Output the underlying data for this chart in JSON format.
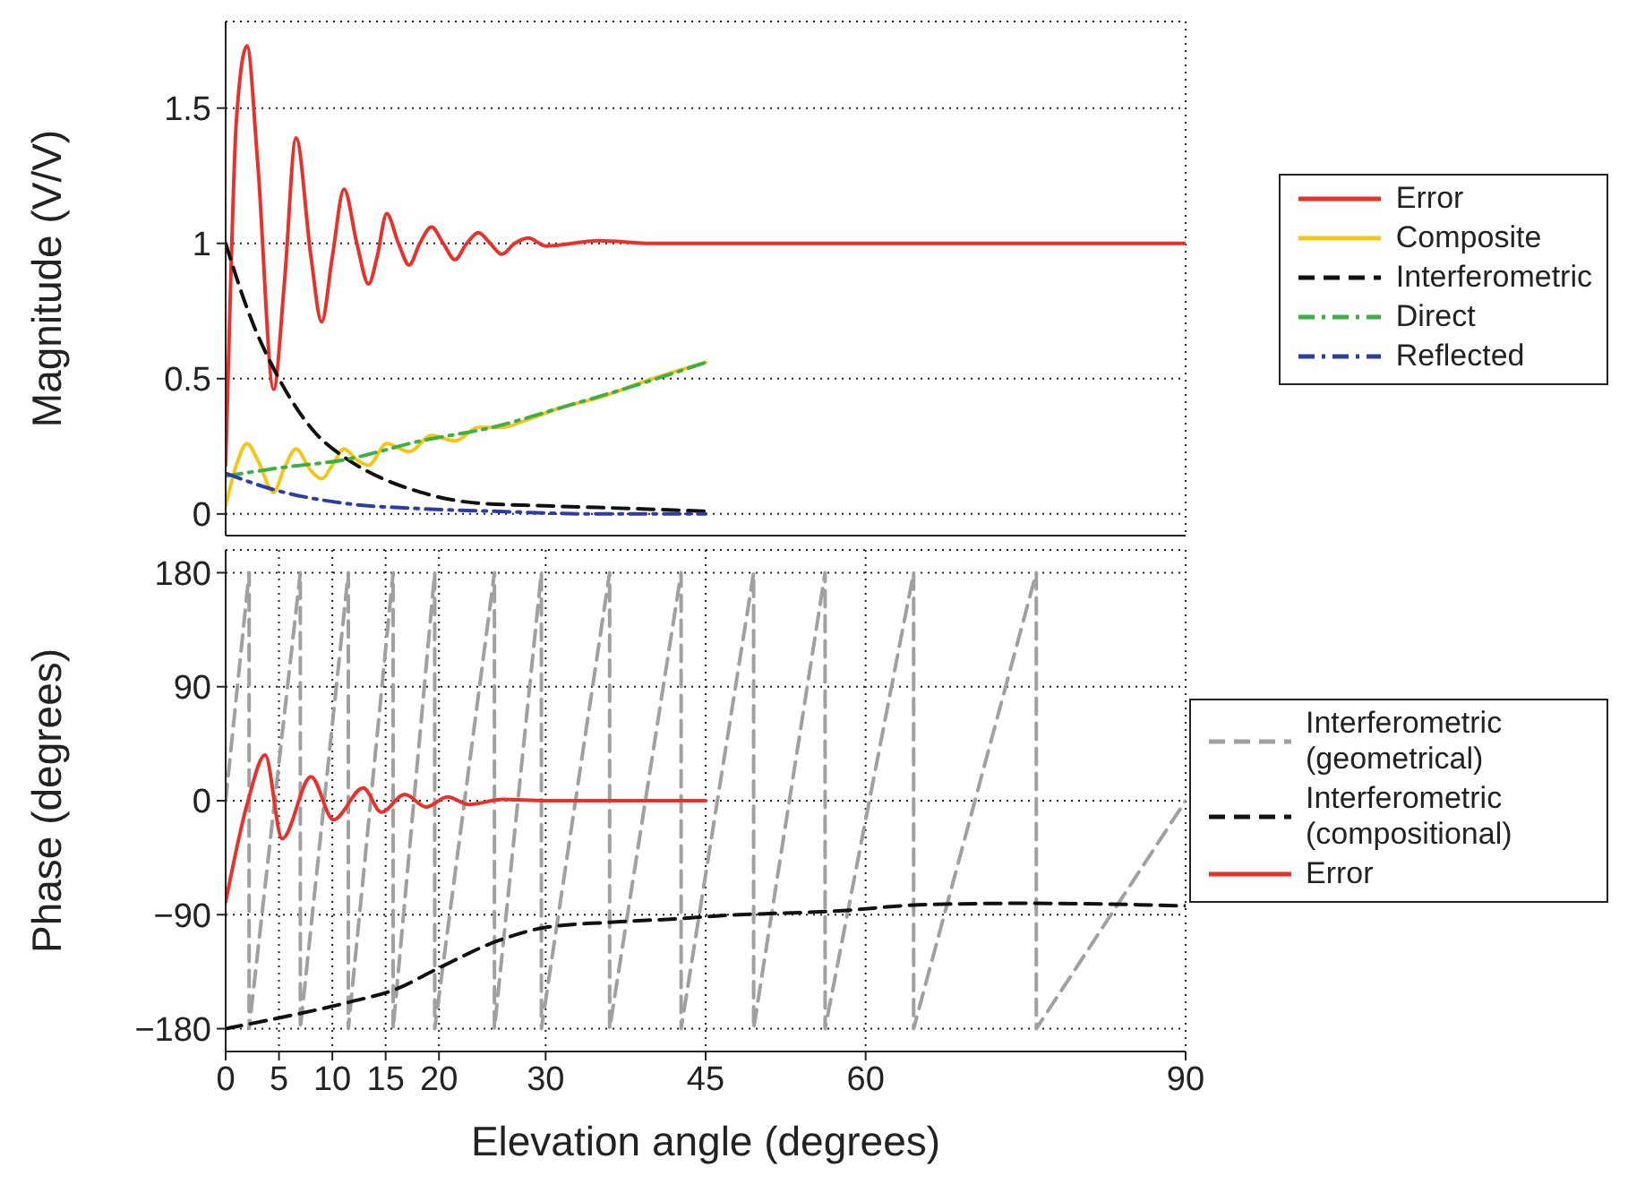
{
  "chart_data": [
    {
      "type": "line",
      "ylabel": "Magnitude (V/V)",
      "xlim": [
        0,
        90
      ],
      "xticks": [
        0,
        5,
        10,
        15,
        20,
        30,
        45,
        60,
        90
      ],
      "ylim": [
        -0.08,
        1.82
      ],
      "yticks": [
        0,
        0.5,
        1,
        1.5
      ],
      "grid": true,
      "legend": "right",
      "tick_labels": "y",
      "series": [
        {
          "name": "Error",
          "color": "#e8312a",
          "line_style": "solid",
          "x": [
            0,
            0.5,
            1,
            2.0,
            3,
            4.5,
            5.5,
            6.6,
            8,
            9.0,
            10,
            11.1,
            12.3,
            13.4,
            14.2,
            15.1,
            16.2,
            17.2,
            18.2,
            19.3,
            20.4,
            21.5,
            22.6,
            23.7,
            24.8,
            25.9,
            27.1,
            28.4,
            30,
            35,
            40,
            50,
            60,
            70,
            80,
            90
          ],
          "values": [
            0.18,
            0.9,
            1.45,
            1.73,
            1.3,
            0.46,
            0.85,
            1.39,
            0.95,
            0.71,
            0.95,
            1.2,
            1.0,
            0.85,
            0.95,
            1.11,
            1.0,
            0.92,
            1.0,
            1.06,
            1.0,
            0.94,
            1.0,
            1.04,
            1.0,
            0.96,
            1.0,
            1.02,
            0.99,
            1.01,
            1,
            1,
            1,
            1,
            1,
            1
          ]
        },
        {
          "name": "Composite",
          "color": "#f5c518",
          "line_style": "solid",
          "x": [
            0,
            1,
            2.0,
            3,
            4.5,
            5.5,
            6.6,
            8,
            9.0,
            10,
            11.1,
            12.3,
            13.4,
            15.1,
            17.2,
            19.3,
            21.5,
            23.7,
            25.9,
            28.4,
            31.2,
            35,
            40,
            45
          ],
          "values": [
            0.03,
            0.18,
            0.26,
            0.2,
            0.08,
            0.17,
            0.24,
            0.16,
            0.13,
            0.18,
            0.24,
            0.2,
            0.18,
            0.26,
            0.23,
            0.29,
            0.27,
            0.32,
            0.32,
            0.35,
            0.39,
            0.43,
            0.5,
            0.56
          ]
        },
        {
          "name": "Interferometric",
          "color": "#111111",
          "line_style": "dashed",
          "x": [
            0,
            2.1,
            5,
            8.4,
            11.1,
            13.2,
            18.3,
            23.6,
            30,
            38,
            45
          ],
          "values": [
            1,
            0.75,
            0.5,
            0.3,
            0.21,
            0.16,
            0.08,
            0.04,
            0.03,
            0.02,
            0.01
          ]
        },
        {
          "name": "Direct",
          "color": "#3cb043",
          "line_style": "dashdot",
          "x": [
            0,
            5,
            11.1,
            18.3,
            25,
            31.2,
            38,
            45
          ],
          "values": [
            0.14,
            0.17,
            0.2,
            0.27,
            0.32,
            0.39,
            0.47,
            0.56
          ]
        },
        {
          "name": "Reflected",
          "color": "#2b3ea6",
          "line_style": "dashdot",
          "x": [
            0,
            4.5,
            11,
            18,
            25,
            35,
            45
          ],
          "values": [
            0.15,
            0.09,
            0.04,
            0.02,
            0.01,
            0,
            0
          ]
        }
      ]
    },
    {
      "type": "line",
      "ylabel": "Phase (degrees)",
      "xlabel": "Elevation angle (degrees)",
      "xlim": [
        0,
        90
      ],
      "xticks": [
        0,
        5,
        10,
        15,
        20,
        30,
        45,
        60,
        90
      ],
      "ylim": [
        -198,
        198
      ],
      "yticks": [
        {
          "value": -180,
          "label": "−180"
        },
        {
          "value": -90,
          "label": "−90"
        },
        0,
        90,
        180
      ],
      "grid": true,
      "legend": "right",
      "series": [
        {
          "name": "Interferometric (geometrical)",
          "color": "#a0a0a0",
          "line_style": "dashed",
          "x": [
            0,
            2.2,
            2.2,
            7.0,
            7.0,
            11.5,
            11.5,
            15.7,
            15.7,
            19.6,
            19.6,
            25.2,
            25.2,
            29.6,
            29.6,
            36,
            36,
            42.7,
            42.7,
            49.5,
            49.5,
            56.2,
            56.2,
            64.5,
            64.5,
            76,
            76,
            90
          ],
          "values": [
            0,
            180,
            -180,
            180,
            -180,
            180,
            -180,
            180,
            -180,
            180,
            -180,
            180,
            -180,
            180,
            -180,
            180,
            -180,
            180,
            -180,
            180,
            -180,
            180,
            -180,
            180,
            -180,
            180,
            -180,
            0
          ]
        },
        {
          "name": "Interferometric (compositional)",
          "color": "#111111",
          "line_style": "dashed",
          "x": [
            0,
            5.3,
            11.6,
            15.9,
            20,
            25.4,
            30,
            36,
            42.7,
            46,
            57.5,
            65.6,
            75,
            90
          ],
          "values": [
            -180,
            -171,
            -159,
            -149,
            -132,
            -111,
            -100,
            -96,
            -93,
            -91,
            -87,
            -82,
            -81,
            -83
          ]
        },
        {
          "name": "Error",
          "color": "#e8312a",
          "line_style": "solid",
          "x": [
            0,
            2.1,
            3.7,
            5.3,
            8.0,
            10.1,
            12.9,
            14.6,
            16.8,
            18.8,
            20.8,
            22.8,
            26,
            30,
            45
          ],
          "values": [
            -80,
            0,
            36,
            -30,
            19,
            -15,
            10,
            -9,
            5,
            -5,
            3,
            -3,
            1,
            0,
            0
          ]
        }
      ]
    }
  ]
}
